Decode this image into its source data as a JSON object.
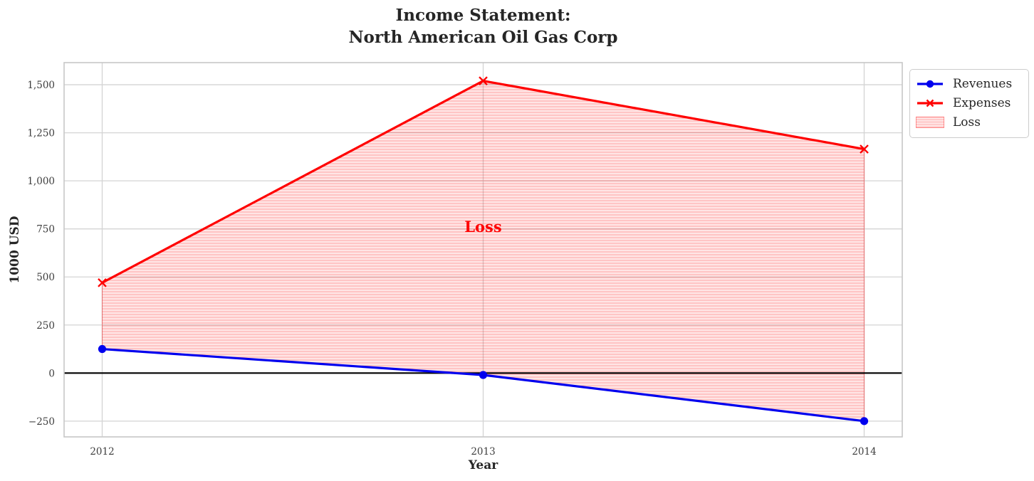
{
  "chart_data": {
    "type": "line",
    "title": "Income Statement:\nNorth American Oil Gas Corp",
    "title_lines": [
      "Income Statement:",
      "North American Oil Gas Corp"
    ],
    "xlabel": "Year",
    "ylabel": "1000 USD",
    "x": [
      2012,
      2013,
      2014
    ],
    "series": [
      {
        "name": "Revenues",
        "color": "#0000ee",
        "marker": "circle",
        "values": [
          125,
          -10,
          -250
        ]
      },
      {
        "name": "Expenses",
        "color": "#ff0000",
        "marker": "x",
        "values": [
          470,
          1520,
          1165
        ]
      }
    ],
    "fill_between": {
      "label": "Loss",
      "between": [
        "Revenues",
        "Expenses"
      ],
      "color": "#ff0000",
      "hatch": "horizontal",
      "background_rgba": "rgba(255,0,0,0.10)",
      "hatch_rgba": "rgba(255,0,0,0.28)",
      "edge_rgba": "rgba(255,0,0,0.40)"
    },
    "annotation": {
      "text": "Loss",
      "x": 2013,
      "y": 760,
      "color": "#ff0000"
    },
    "zero_line": {
      "y": 0,
      "color": "#000000"
    },
    "xlim": [
      2011.9,
      2014.1
    ],
    "ylim": [
      -332,
      1615
    ],
    "yticks": [
      -250,
      0,
      250,
      500,
      750,
      1000,
      1250,
      1500
    ],
    "ytick_labels": [
      "−250",
      "0",
      "250",
      "500",
      "750",
      "1,000",
      "1,250",
      "1,500"
    ],
    "xticks": [
      2012,
      2013,
      2014
    ],
    "xtick_labels": [
      "2012",
      "2013",
      "2014"
    ],
    "grid": true,
    "grid_color": "#d4d4d4",
    "spine_color": "#c7c7c7",
    "tick_label_color": "#3d3d3d",
    "legend": {
      "position": "upper-right-outside",
      "entries": [
        "Revenues",
        "Expenses",
        "Loss"
      ]
    }
  }
}
